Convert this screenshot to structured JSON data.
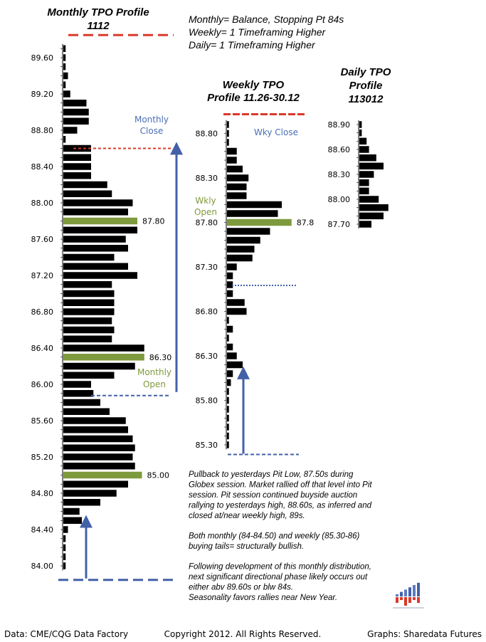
{
  "header_notes": [
    "Monthly= Balance, Stopping Pt 84s",
    "Weekly= 1 Timeframing Higher",
    "Daily= 1 Timeframing Higher"
  ],
  "chart_data": [
    {
      "type": "bar",
      "orientation": "horizontal",
      "title": [
        "Monthly TPO Profile",
        "1112"
      ],
      "step": 0.1,
      "prices_low_to_high": [
        84.0,
        84.1,
        84.2,
        84.3,
        84.4,
        84.5,
        84.6,
        84.7,
        84.8,
        84.9,
        85.0,
        85.1,
        85.2,
        85.3,
        85.4,
        85.5,
        85.6,
        85.7,
        85.8,
        85.9,
        86.0,
        86.1,
        86.2,
        86.3,
        86.4,
        86.5,
        86.6,
        86.7,
        86.8,
        86.9,
        87.0,
        87.1,
        87.2,
        87.3,
        87.4,
        87.5,
        87.6,
        87.7,
        87.8,
        87.9,
        88.0,
        88.1,
        88.2,
        88.3,
        88.4,
        88.5,
        88.6,
        88.7,
        88.8,
        88.9,
        89.0,
        89.1,
        89.2,
        89.3,
        89.4,
        89.5,
        89.6,
        89.7
      ],
      "tpo_counts": [
        1,
        1,
        1,
        1,
        2,
        8,
        7,
        16,
        23,
        28,
        34,
        31,
        30,
        31,
        30,
        28,
        27,
        20,
        16,
        13,
        12,
        22,
        31,
        35,
        35,
        21,
        22,
        21,
        22,
        22,
        22,
        21,
        32,
        28,
        22,
        28,
        27,
        32,
        32,
        28,
        30,
        21,
        19,
        12,
        12,
        12,
        12,
        1,
        6,
        11,
        11,
        10,
        3,
        1,
        2,
        1,
        1,
        1
      ],
      "highlight": [
        {
          "price": 87.8,
          "label": "87.80"
        },
        {
          "price": 86.3,
          "label": "86.30"
        },
        {
          "price": 85.0,
          "label": "85.00"
        }
      ],
      "y_ticks": [
        "84.00",
        "84.40",
        "84.80",
        "85.20",
        "85.60",
        "86.00",
        "86.40",
        "86.80",
        "87.20",
        "87.60",
        "88.00",
        "88.40",
        "88.80",
        "89.20",
        "89.60"
      ],
      "ylim": [
        84.0,
        89.6
      ],
      "annotations": {
        "close_label": [
          "Monthly",
          "Close"
        ],
        "open_label": [
          "Monthly",
          "Open"
        ],
        "close_price": 88.6,
        "open_price": 85.9,
        "top_line_price": 89.7,
        "bottom_line_price": 83.9,
        "arrow_up_from": 85.9,
        "arrow_up_to": 88.8,
        "tail_arrow_from": 83.9,
        "tail_arrow_to": 84.5
      }
    },
    {
      "type": "bar",
      "orientation": "horizontal",
      "title": [
        "Weekly TPO",
        "Profile 11.26-30.12"
      ],
      "step": 0.1,
      "prices_low_to_high": [
        85.3,
        85.4,
        85.5,
        85.6,
        85.7,
        85.8,
        85.9,
        86.0,
        86.1,
        86.2,
        86.3,
        86.4,
        86.5,
        86.6,
        86.7,
        86.8,
        86.9,
        87.0,
        87.1,
        87.2,
        87.3,
        87.4,
        87.5,
        87.6,
        87.7,
        87.8,
        87.9,
        88.0,
        88.1,
        88.2,
        88.3,
        88.4,
        88.5,
        88.6,
        88.7,
        88.8,
        88.9
      ],
      "tpo_counts": [
        1,
        1,
        1,
        1,
        1,
        1,
        1,
        2,
        3,
        8,
        5,
        3,
        1,
        3,
        1,
        10,
        9,
        3,
        3,
        3,
        5,
        13,
        14,
        17,
        22,
        33,
        26,
        28,
        10,
        10,
        11,
        8,
        5,
        5,
        1,
        1,
        1
      ],
      "highlight": [
        {
          "price": 87.8,
          "label": "87.8"
        }
      ],
      "y_ticks": [
        "85.30",
        "85.80",
        "86.30",
        "86.80",
        "87.30",
        "87.80",
        "88.30",
        "88.80"
      ],
      "ylim": [
        85.3,
        88.9
      ],
      "annotations": {
        "close_label": "Wky Close",
        "open_label": [
          "Wkly",
          "Open"
        ],
        "top_line_price": 89.0,
        "bottom_line_price": 85.2,
        "dotted_line_price": 87.1,
        "arrow_up_from": 85.2,
        "arrow_up_to": 86.2
      }
    },
    {
      "type": "bar",
      "orientation": "horizontal",
      "title": [
        "Daily TPO",
        "Profile",
        "113012"
      ],
      "step": 0.1,
      "prices_low_to_high": [
        87.7,
        87.8,
        87.9,
        88.0,
        88.1,
        88.2,
        88.3,
        88.4,
        88.5,
        88.6,
        88.7,
        88.8,
        88.9
      ],
      "tpo_counts": [
        5,
        10,
        12,
        8,
        4,
        4,
        6,
        10,
        7,
        4,
        3,
        1,
        1
      ],
      "y_ticks": [
        "87.70",
        "88.00",
        "88.30",
        "88.60",
        "88.90"
      ],
      "ylim": [
        87.7,
        88.9
      ]
    }
  ],
  "commentary": [
    [
      "Pullback to yesterdays Pit Low, 87.50s during",
      "Globex session. Market rallied off that level into Pit",
      "session. Pit session continued buyside auction",
      "rallying to yesterdays high, 88.60s, as inferred and",
      "closed at/near weekly high, 89s."
    ],
    [
      "Both monthly (84-84.50) and weekly (85.30-86)",
      "buying tails= structurally bullish."
    ],
    [
      "Following development of this monthly distribution,",
      "next significant directional phase likely occurs out",
      "either abv 89.60s or blw 84s.",
      "Seasonality favors rallies near New Year."
    ]
  ],
  "footer": {
    "left": "Data: CME/CQG Data Factory",
    "center": "Copyright 2012. All Rights Reserved.",
    "right": "Graphs: Sharedata Futures"
  },
  "colors": {
    "bar": "#000000",
    "highlight": "#7d9a3c",
    "arrow": "#4361a8",
    "ref_red": "#d93a2b",
    "ref_blue": "#4361a8",
    "annotation_blue": "#4a6fb5",
    "annotation_green": "#7d9a3c"
  },
  "logo": {
    "name": "sharedata-logo-icon",
    "bars_up": [
      1,
      2,
      3,
      4,
      5,
      6
    ],
    "bars_down": [
      2,
      1,
      3,
      2,
      1,
      2
    ]
  }
}
